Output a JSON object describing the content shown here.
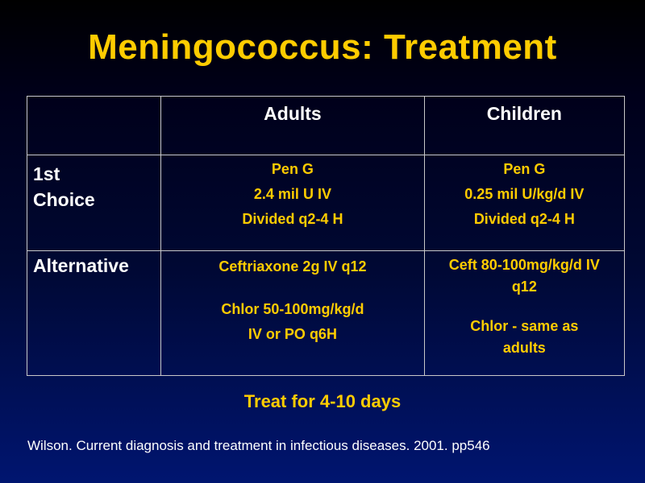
{
  "slide": {
    "title": "Meningococcus: Treatment",
    "footer_note": "Treat for 4-10 days",
    "citation": "Wilson.  Current diagnosis and treatment in infectious diseases.  2001. pp546"
  },
  "table": {
    "headers": [
      "",
      "Adults",
      "Children"
    ],
    "rows": [
      {
        "label_lines": [
          "1st",
          "Choice"
        ],
        "adults_lines": [
          "Pen G",
          "2.4 mil U IV",
          "Divided q2-4 H"
        ],
        "children_lines": [
          "Pen G",
          "0.25 mil U/kg/d IV",
          "Divided q2-4 H"
        ]
      },
      {
        "label": "Alternative",
        "adults_lines": [
          "Ceftriaxone 2g IV q12",
          "Chlor 50-100mg/kg/d",
          "IV or PO q6H"
        ],
        "children_lines": [
          "Ceft 80-100mg/kg/d IV",
          "q12",
          "Chlor  - same as",
          "adults"
        ]
      }
    ]
  },
  "colors": {
    "title": "#ffcc00",
    "cell_text_accent": "#ffcc00",
    "label_text": "#ffffff",
    "grid_lines": "#c8c8c8",
    "background_top": "#000000",
    "background_bottom": "#001570"
  }
}
